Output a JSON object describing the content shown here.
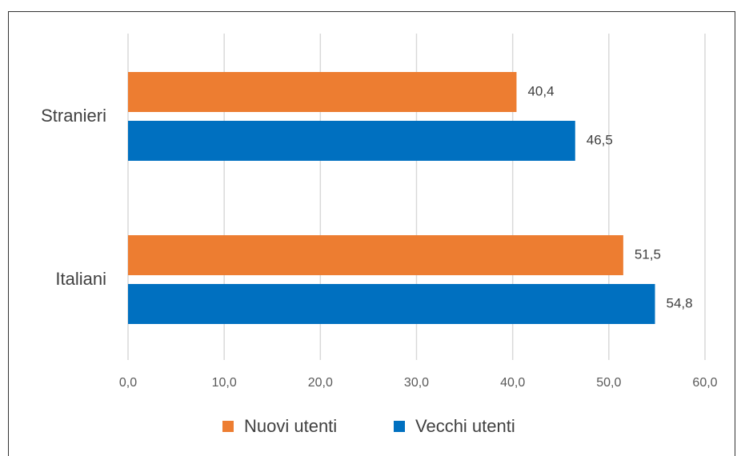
{
  "chart_data": {
    "type": "barh",
    "categories": [
      "Stranieri",
      "Italiani"
    ],
    "series": [
      {
        "name": "Nuovi utenti",
        "color": "#ED7D31",
        "values": [
          40.4,
          51.5
        ],
        "value_labels": [
          "40,4",
          "51,5"
        ]
      },
      {
        "name": "Vecchi utenti",
        "color": "#0070C0",
        "values": [
          46.5,
          54.8
        ],
        "value_labels": [
          "46,5",
          "54,8"
        ]
      }
    ],
    "xlim": [
      0,
      60
    ],
    "xticks": [
      {
        "value": 0,
        "label": "0,0"
      },
      {
        "value": 10,
        "label": "10,0"
      },
      {
        "value": 20,
        "label": "20,0"
      },
      {
        "value": 30,
        "label": "30,0"
      },
      {
        "value": 40,
        "label": "40,0"
      },
      {
        "value": 50,
        "label": "50,0"
      },
      {
        "value": 60,
        "label": "60,0"
      }
    ],
    "grid": true,
    "legend": "bottom"
  }
}
